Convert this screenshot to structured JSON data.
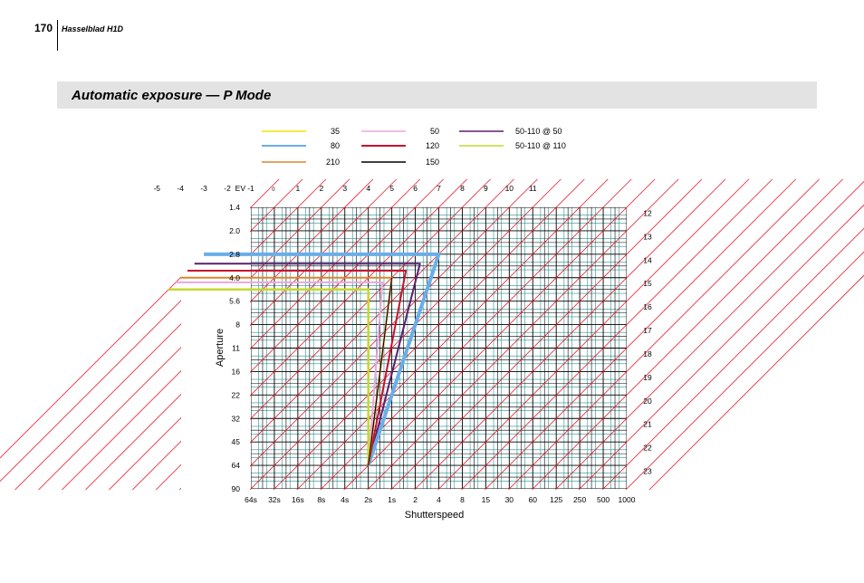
{
  "header": {
    "page_number": "170",
    "doc_title": "Hasselblad H1D"
  },
  "section": {
    "title": "Automatic exposure — P Mode"
  },
  "chart_data": {
    "type": "line",
    "xlabel": "Shutterspeed",
    "ylabel": "Aperture",
    "shutter_ticks": [
      "64s",
      "32s",
      "16s",
      "8s",
      "4s",
      "2s",
      "1s",
      "2",
      "4",
      "8",
      "15",
      "30",
      "60",
      "125",
      "250",
      "500",
      "1000"
    ],
    "aperture_ticks": [
      "1.4",
      "2.0",
      "2.8",
      "4.0",
      "5.6",
      "8",
      "11",
      "16",
      "22",
      "32",
      "45",
      "64",
      "90"
    ],
    "ev_label": "EV",
    "ev_top_ticks": [
      "-5",
      "-4",
      "-3",
      "-2",
      "-1",
      "0",
      "1",
      "2",
      "3",
      "4",
      "5",
      "6",
      "7",
      "8",
      "9",
      "10",
      "11"
    ],
    "ev_right_ticks": [
      "12",
      "13",
      "14",
      "15",
      "16",
      "17",
      "18",
      "19",
      "20",
      "21",
      "22",
      "23"
    ],
    "legend": [
      {
        "name": "35",
        "color": "#f2e600"
      },
      {
        "name": "50",
        "color": "#e8a8dc"
      },
      {
        "name": "50-110 @ 50",
        "color": "#5a1f6e"
      },
      {
        "name": "80",
        "color": "#6aaee8"
      },
      {
        "name": "120",
        "color": "#c8102e"
      },
      {
        "name": "50-110 @ 110",
        "color": "#c4d82e"
      },
      {
        "name": "210",
        "color": "#d9892b"
      },
      {
        "name": "150",
        "color": "#000000"
      }
    ],
    "series": [
      {
        "name": "35",
        "color": "#f2e600",
        "width": 2,
        "points": [
          [
            -6,
            3.5
          ],
          [
            2.5,
            3.5
          ],
          [
            10,
            11
          ]
        ]
      },
      {
        "name": "50",
        "color": "#e8a8dc",
        "width": 2,
        "points": [
          [
            -6,
            3.2
          ],
          [
            2.8,
            3.2
          ],
          [
            10,
            11
          ]
        ]
      },
      {
        "name": "50-110 @ 50",
        "color": "#5a1f6e",
        "width": 2,
        "points": [
          [
            -6,
            2.4
          ],
          [
            3.6,
            2.4
          ],
          [
            10,
            11
          ]
        ]
      },
      {
        "name": "80",
        "color": "#6aaee8",
        "width": 4,
        "points": [
          [
            -6,
            2.0
          ],
          [
            4.0,
            2.0
          ],
          [
            10,
            11
          ]
        ]
      },
      {
        "name": "120",
        "color": "#c8102e",
        "width": 2,
        "points": [
          [
            -6,
            2.7
          ],
          [
            3.3,
            2.7
          ],
          [
            10,
            11
          ]
        ]
      },
      {
        "name": "50-110 @ 110",
        "color": "#c4d82e",
        "width": 2.5,
        "points": [
          [
            -6,
            3.5
          ],
          [
            2.5,
            3.5
          ],
          [
            10,
            11
          ]
        ]
      },
      {
        "name": "210",
        "color": "#d9892b",
        "width": 2,
        "points": [
          [
            -6,
            3.0
          ],
          [
            3.0,
            3.0
          ],
          [
            10,
            11
          ]
        ]
      },
      {
        "name": "150",
        "color": "#000000",
        "width": 1,
        "points": [
          [
            3.0,
            3.0
          ],
          [
            10,
            11
          ]
        ]
      }
    ],
    "colors": {
      "grid_major": "#000000",
      "grid_minor": "#2e8f8f",
      "ev_diagonal": "#e8192c"
    },
    "grid": true
  }
}
